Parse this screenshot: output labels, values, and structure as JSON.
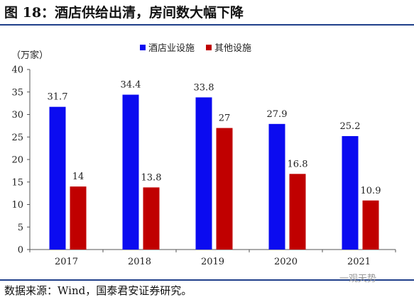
{
  "figure": {
    "title": "图 18：酒店供给出清，房间数大幅下降",
    "source": "数据来源：Wind，国泰君安证券研究。",
    "watermark": "一观天势"
  },
  "chart_data": {
    "type": "bar",
    "unit_label": "（万家）",
    "categories": [
      "2017",
      "2018",
      "2019",
      "2020",
      "2021"
    ],
    "series": [
      {
        "name": "酒店业设施",
        "color": "#0b0bf0",
        "values": [
          31.7,
          34.4,
          33.8,
          27.9,
          25.2
        ]
      },
      {
        "name": "其他设施",
        "color": "#c00000",
        "values": [
          14,
          13.8,
          27,
          16.8,
          10.9
        ]
      }
    ],
    "data_labels": [
      [
        "31.7",
        "34.4",
        "33.8",
        "27.9",
        "25.2"
      ],
      [
        "14",
        "13.8",
        "27",
        "16.8",
        "10.9"
      ]
    ],
    "ylim": [
      0,
      40
    ],
    "yticks": [
      "0",
      "5",
      "10",
      "15",
      "20",
      "25",
      "30",
      "35",
      "40"
    ],
    "legend_position": "top",
    "grid": false
  }
}
